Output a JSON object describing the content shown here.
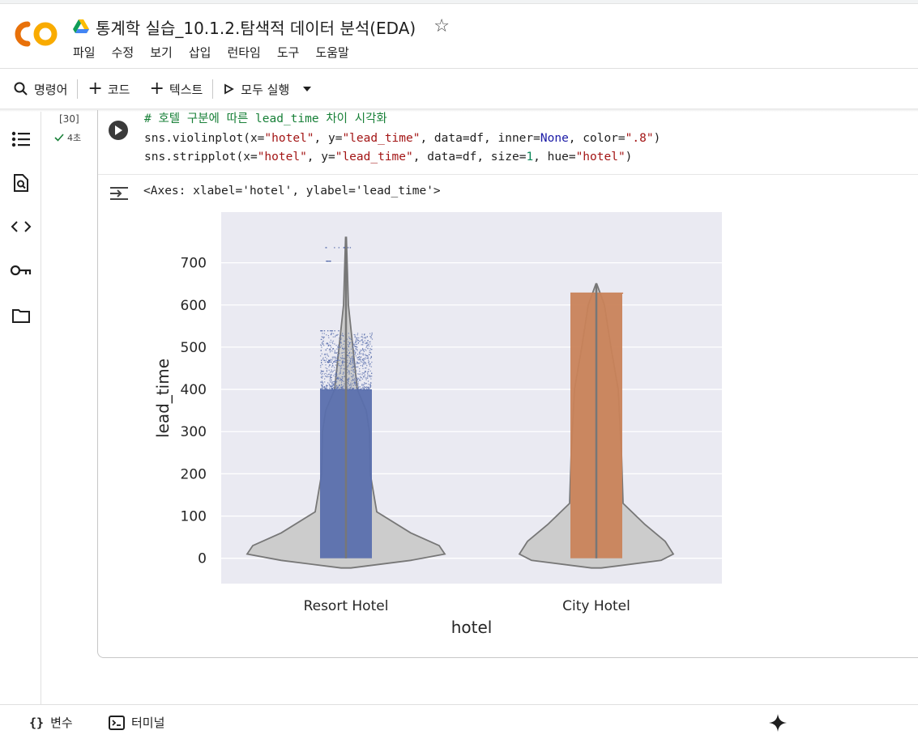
{
  "header": {
    "title": "통계학 실습_10.1.2.탐색적 데이터 분석(EDA)",
    "menu": [
      "파일",
      "수정",
      "보기",
      "삽입",
      "런타임",
      "도구",
      "도움말"
    ]
  },
  "toolbar": {
    "command_label": "명령어",
    "code_label": "코드",
    "text_label": "텍스트",
    "run_all_label": "모두 실행"
  },
  "cell": {
    "execution_count": "[30]",
    "duration": "4초",
    "code_lines": [
      "# 호텔 구분에 따른 lead_time 차이 시각화",
      "sns.violinplot(x=\"hotel\", y=\"lead_time\", data=df, inner=None, color=\".8\")",
      "sns.stripplot(x=\"hotel\", y=\"lead_time\", data=df, size=1, hue=\"hotel\")"
    ],
    "output_text": "<Axes: xlabel='hotel', ylabel='lead_time'>"
  },
  "chart_data": {
    "type": "violin+strip",
    "xlabel": "hotel",
    "ylabel": "lead_time",
    "categories": [
      "Resort Hotel",
      "City Hotel"
    ],
    "yticks": [
      0,
      100,
      200,
      300,
      400,
      500,
      600,
      700
    ],
    "ylim": [
      -60,
      820
    ],
    "grid": true,
    "series": [
      {
        "name": "Resort Hotel",
        "color": "#5a6fad",
        "min": 0,
        "max": 737,
        "dense_max": 400
      },
      {
        "name": "City Hotel",
        "color": "#c9835a",
        "min": 0,
        "max": 629,
        "dense_max": 629
      }
    ]
  },
  "bottombar": {
    "variables_label": "변수",
    "terminal_label": "터미널"
  },
  "colors": {
    "accent": "#f9ab00",
    "plot_bg": "#eaeaf2"
  }
}
